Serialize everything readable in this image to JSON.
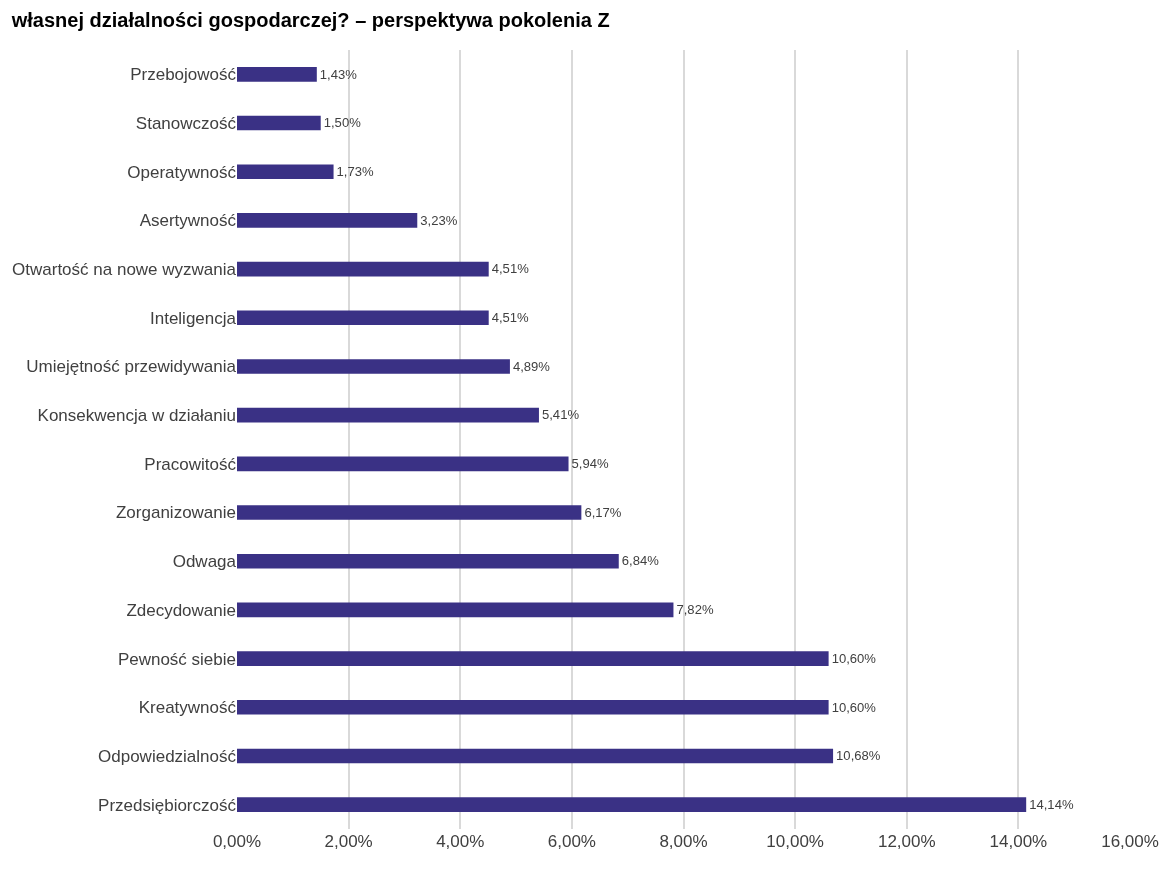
{
  "chart_data": {
    "type": "bar",
    "orientation": "horizontal",
    "title": "własnej działalności gospodarczej? – perspektywa pokolenia Z",
    "categories": [
      "Przebojowość",
      "Stanowczość",
      "Operatywność",
      "Asertywność",
      "Otwartość na nowe wyzwania",
      "Inteligencja",
      "Umiejętność przewidywania",
      "Konsekwencja w działaniu",
      "Pracowitość",
      "Zorganizowanie",
      "Odwaga",
      "Zdecydowanie",
      "Pewność siebie",
      "Kreatywność",
      "Odpowiedzialność",
      "Przedsiębiorczość"
    ],
    "values": [
      1.43,
      1.5,
      1.73,
      3.23,
      4.51,
      4.51,
      4.89,
      5.41,
      5.94,
      6.17,
      6.84,
      7.82,
      10.6,
      10.6,
      10.68,
      14.14
    ],
    "value_labels": [
      "1,43%",
      "1,50%",
      "1,73%",
      "3,23%",
      "4,51%",
      "4,51%",
      "4,89%",
      "5,41%",
      "5,94%",
      "6,17%",
      "6,84%",
      "7,82%",
      "10,60%",
      "10,60%",
      "10,68%",
      "14,14%"
    ],
    "color": "#3a3185",
    "xlim": [
      0,
      16
    ],
    "xticks": [
      {
        "value": 0,
        "label": "0,00%"
      },
      {
        "value": 2,
        "label": "2,00%"
      },
      {
        "value": 4,
        "label": "4,00%"
      },
      {
        "value": 6,
        "label": "6,00%"
      },
      {
        "value": 8,
        "label": "8,00%"
      },
      {
        "value": 10,
        "label": "10,00%"
      },
      {
        "value": 12,
        "label": "12,00%"
      },
      {
        "value": 14,
        "label": "14,00%"
      },
      {
        "value": 16,
        "label": "16,00%"
      }
    ],
    "grid": "x",
    "legend": false
  }
}
